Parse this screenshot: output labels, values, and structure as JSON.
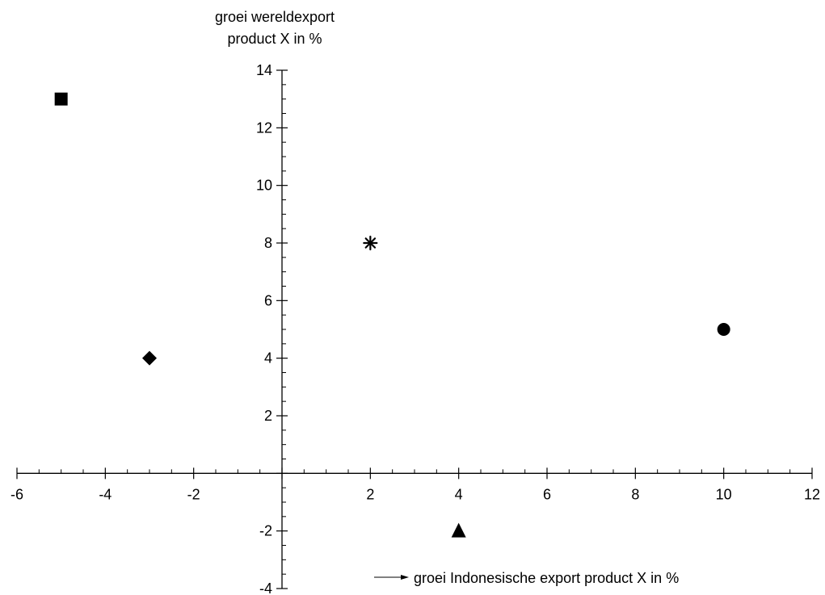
{
  "chart_data": {
    "type": "scatter",
    "title": "",
    "ylabel_lines": [
      "groei wereldexport",
      "product X in %"
    ],
    "xlabel": "groei Indonesische export product X in %",
    "xlim": [
      -6,
      12
    ],
    "ylim": [
      -4,
      14
    ],
    "x_tick_labels": [
      "-6",
      "-4",
      "-2",
      "2",
      "4",
      "6",
      "8",
      "10",
      "12"
    ],
    "y_tick_labels": [
      "-4",
      "-2",
      "2",
      "4",
      "6",
      "8",
      "10",
      "12",
      "14"
    ],
    "points": [
      {
        "marker": "square",
        "x": -5,
        "y": 13
      },
      {
        "marker": "diamond",
        "x": -3,
        "y": 4
      },
      {
        "marker": "asterisk",
        "x": 2,
        "y": 8
      },
      {
        "marker": "triangle",
        "x": 4,
        "y": -2
      },
      {
        "marker": "circle",
        "x": 10,
        "y": 5
      }
    ],
    "grid": false,
    "legend": "none",
    "colors": {
      "axis": "#000000",
      "marker": "#000000"
    }
  }
}
